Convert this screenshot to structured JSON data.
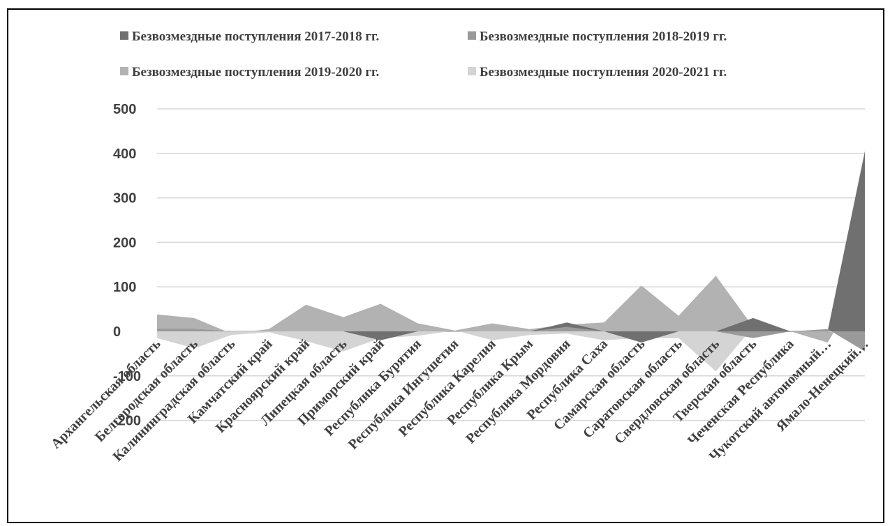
{
  "chart_data": {
    "type": "area",
    "title": "",
    "xlabel": "",
    "ylabel": "",
    "ylim": [
      -200,
      500
    ],
    "yticks": [
      -200,
      -100,
      0,
      100,
      200,
      300,
      400,
      500
    ],
    "grid": true,
    "legend_position": "top",
    "categories": [
      "Архангельская область",
      "Белгородская область",
      "Калининградская область",
      "Камчатский край",
      "Красноярский край",
      "Липецкая область",
      "Приморский край",
      "Республика Бурятия",
      "Республика Ингушетия",
      "Республика Карелия",
      "Республика Крым",
      "Республика Мордовия",
      "Республика Саха",
      "Самарская область",
      "Саратовская область",
      "Свердловская область",
      "Тверская область",
      "Чеченская Республика",
      "Чукотский автономный…",
      "Ямало-Ненецкий…"
    ],
    "series": [
      {
        "name": "Безвозмездные поступления 2017-2018 гг.",
        "color": "#707070",
        "values": [
          5,
          5,
          0,
          0,
          0,
          0,
          -20,
          0,
          0,
          0,
          0,
          20,
          0,
          -25,
          0,
          0,
          30,
          0,
          0,
          405
        ]
      },
      {
        "name": "Безвозмездные поступления 2018-2019 гг.",
        "color": "#9a9a9a",
        "values": [
          5,
          5,
          0,
          0,
          0,
          0,
          0,
          0,
          0,
          0,
          0,
          10,
          0,
          0,
          0,
          0,
          -15,
          0,
          5,
          -45
        ]
      },
      {
        "name": "Безвозмездные поступления 2019-2020 гг.",
        "color": "#b2b2b2",
        "values": [
          38,
          30,
          -5,
          5,
          60,
          32,
          62,
          18,
          2,
          18,
          5,
          15,
          20,
          103,
          35,
          125,
          10,
          0,
          -25,
          115
        ]
      },
      {
        "name": "Безвозмездные поступления 2020-2021 гг.",
        "color": "#d4d4d4",
        "values": [
          -15,
          -38,
          -8,
          -2,
          -22,
          -45,
          -15,
          -10,
          2,
          -20,
          -8,
          -5,
          -20,
          -15,
          -15,
          -90,
          10,
          0,
          0,
          -20
        ]
      }
    ]
  }
}
